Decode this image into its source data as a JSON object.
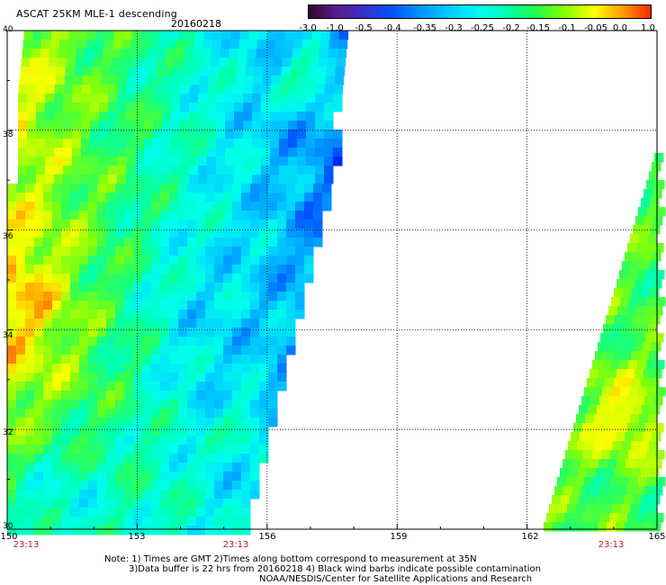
{
  "header": {
    "title": "ASCAT 25KM MLE-1 descending",
    "date": "20160218"
  },
  "colorbar": {
    "labels": [
      "-3.0",
      "-1.0",
      "-0.5",
      "-0.4",
      "-0.35",
      "-0.3",
      "-0.25",
      "-0.2",
      "-0.15",
      "-0.1",
      "-0.05",
      "0.0",
      "1.0"
    ],
    "colors": [
      "#2a0a2a",
      "#5a1a8a",
      "#3333cc",
      "#0055ff",
      "#0099ff",
      "#00ccff",
      "#00ffee",
      "#00ffaa",
      "#22ff44",
      "#88ff00",
      "#ffff00",
      "#ff9900",
      "#ff2200"
    ]
  },
  "map": {
    "lat_labels": [
      "40",
      "38",
      "36",
      "34",
      "32",
      "30"
    ],
    "lon_labels": [
      "150",
      "153",
      "156",
      "159",
      "162",
      "165"
    ],
    "time_labels": [
      "23:13",
      "23:13",
      "23:13"
    ],
    "lat_range": [
      30,
      40
    ],
    "lon_range": [
      150,
      165
    ],
    "swaths": {
      "west": {
        "lon": [
          150,
          157.8
        ],
        "lat": [
          30,
          40
        ]
      },
      "east": {
        "lon": [
          162.2,
          165
        ],
        "lat": [
          30,
          37.4
        ]
      }
    }
  },
  "notes": {
    "line1": "Note: 1) Times are GMT 2)Times along bottom correspond to measurement at 35N",
    "line2": "3)Data buffer is 22 hrs from 20160218 4) Black wind barbs indicate possible contamination",
    "line3": "NOAA/NESDIS/Center for Satellite Applications and Research"
  }
}
